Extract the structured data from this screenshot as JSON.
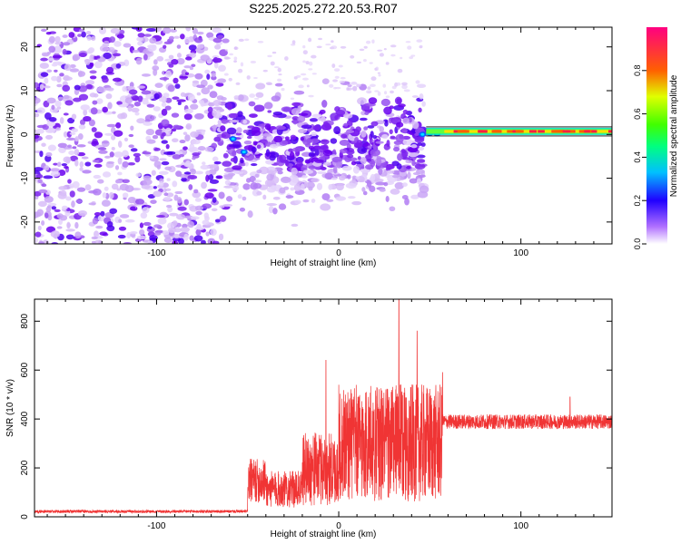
{
  "figure": {
    "title": "S225.2025.272.20.53.R07"
  },
  "chart_data": [
    {
      "type": "heatmap",
      "xlabel": "Height of straight line (km)",
      "ylabel": "Frequency (Hz)",
      "xlim": [
        -167,
        150
      ],
      "ylim": [
        -25,
        24.5
      ],
      "xticks": [
        -100,
        0,
        100
      ],
      "yticks": [
        -20,
        -10,
        0,
        10,
        20
      ],
      "colorbar": {
        "label": "Normalized spectral amplitude",
        "range": [
          0.0,
          1.0
        ],
        "ticks": [
          0.0,
          0.2,
          0.4,
          0.6,
          0.8
        ],
        "colors": [
          "#ffffff",
          "#8000ff",
          "#0000ff",
          "#00ffff",
          "#00ff00",
          "#ffff00",
          "#ff8000",
          "#ff0040",
          "#ff0080"
        ]
      },
      "regions": [
        {
          "x_range": [
            -167,
            -62
          ],
          "y_range": [
            -25,
            24.5
          ],
          "amplitude": 0.1,
          "description_density": "dense"
        },
        {
          "x_range": [
            -62,
            48
          ],
          "y_range": [
            -22,
            15
          ],
          "amplitude": 0.12,
          "description_density": "medium"
        },
        {
          "x_range": [
            48,
            150
          ],
          "y_range": [
            0,
            1.5
          ],
          "amplitude": 0.9,
          "description_density": "narrow band"
        }
      ]
    },
    {
      "type": "line",
      "xlabel": "Height of straight line (km)",
      "ylabel": "SNR (10 * v/v)",
      "xlim": [
        -167,
        150
      ],
      "ylim": [
        0,
        890
      ],
      "xticks": [
        -100,
        0,
        100
      ],
      "yticks": [
        0,
        200,
        400,
        600,
        800
      ],
      "line_color": "#f03434",
      "segments": [
        {
          "x_range": [
            -167,
            -50
          ],
          "base": 20,
          "noise": 12
        },
        {
          "x_range": [
            -50,
            -40
          ],
          "base": 120,
          "noise": 180
        },
        {
          "x_range": [
            -40,
            -20
          ],
          "base": 90,
          "noise": 150
        },
        {
          "x_range": [
            -20,
            0
          ],
          "base": 150,
          "noise": 300
        },
        {
          "x_range": [
            0,
            57
          ],
          "base": 230,
          "noise": 480
        },
        {
          "x_range": [
            57,
            150
          ],
          "base": 380,
          "noise": 60
        }
      ],
      "peaks": [
        {
          "x": 33,
          "y": 890
        },
        {
          "x": 43,
          "y": 760
        },
        {
          "x": -7,
          "y": 640
        },
        {
          "x": 57,
          "y": 590
        },
        {
          "x": 127,
          "y": 490
        }
      ]
    }
  ]
}
